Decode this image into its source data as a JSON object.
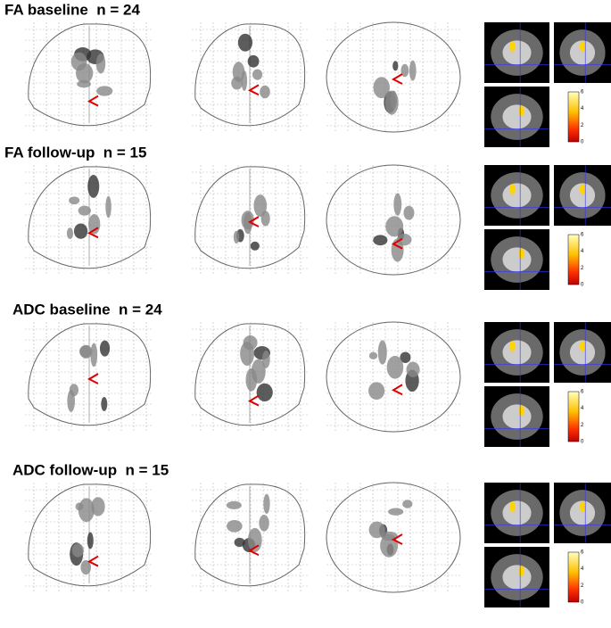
{
  "panels": [
    {
      "title": "FA baseline  n = 24",
      "colorbar_ticks": [
        6,
        4,
        2,
        0
      ]
    },
    {
      "title": "FA follow-up  n = 15",
      "colorbar_ticks": [
        6,
        4,
        2,
        0
      ]
    },
    {
      "title": "ADC baseline  n = 24",
      "colorbar_ticks": [
        6,
        4,
        2,
        0
      ]
    },
    {
      "title": "ADC follow-up  n = 15",
      "colorbar_ticks": [
        6,
        4,
        2,
        0
      ]
    }
  ]
}
